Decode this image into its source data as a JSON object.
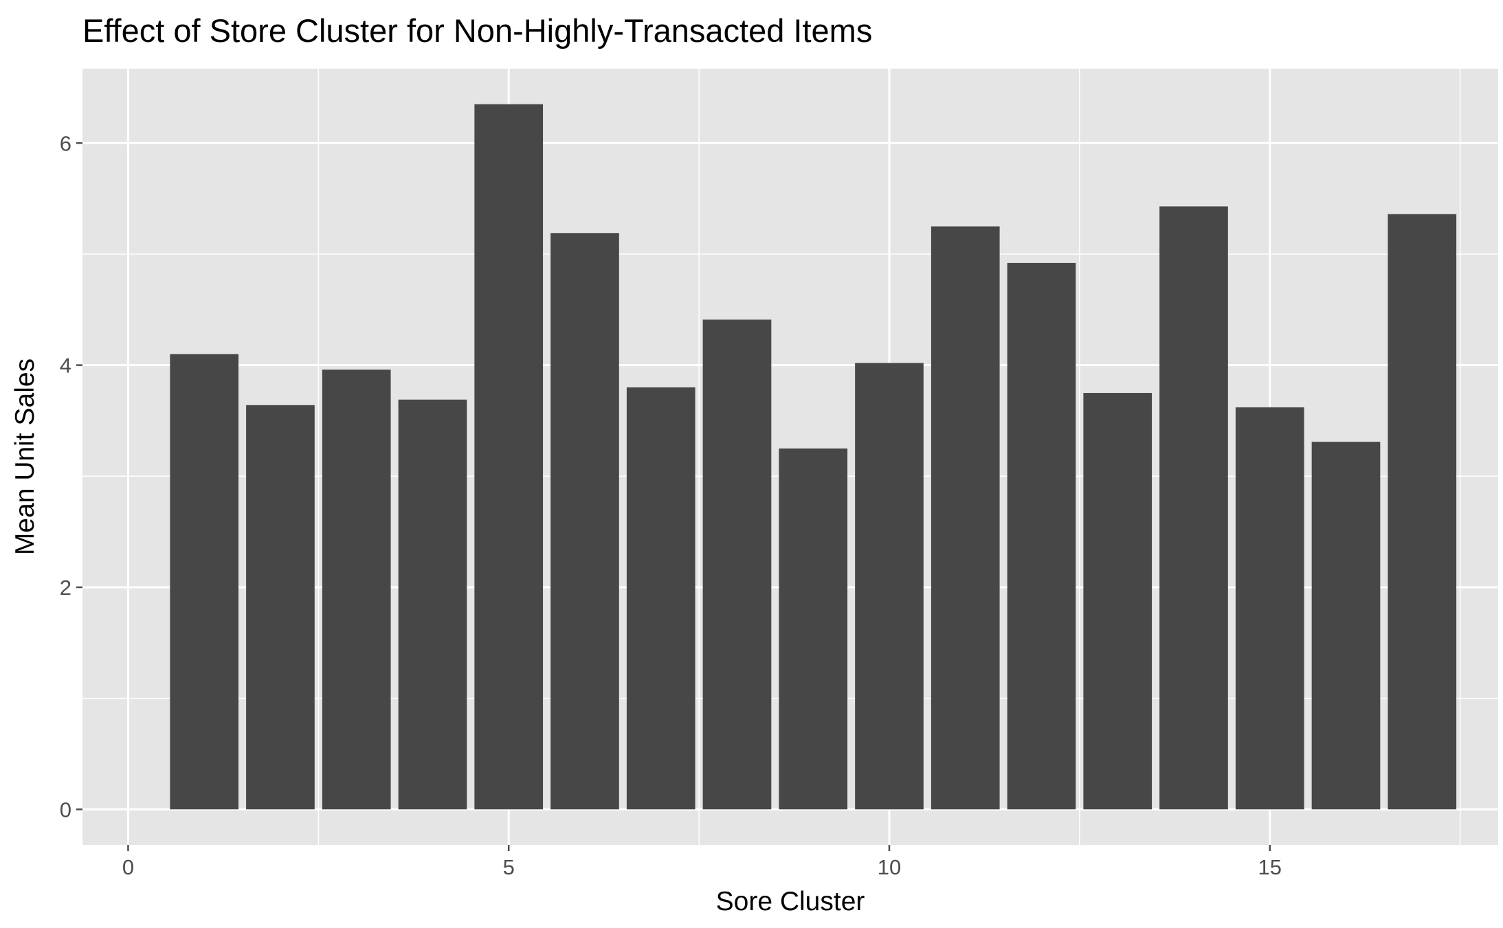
{
  "chart_data": {
    "type": "bar",
    "title": "Effect of Store Cluster for Non-Highly-Transacted Items",
    "xlabel": "Sore Cluster",
    "ylabel": "Mean Unit Sales",
    "x": [
      1,
      2,
      3,
      4,
      5,
      6,
      7,
      8,
      9,
      10,
      11,
      12,
      13,
      14,
      15,
      16,
      17
    ],
    "values": [
      4.1,
      3.64,
      3.96,
      3.69,
      6.35,
      5.19,
      3.8,
      4.41,
      3.25,
      4.02,
      5.25,
      4.92,
      3.75,
      5.43,
      3.62,
      3.31,
      5.36
    ],
    "xlim": [
      -0.6,
      18.0
    ],
    "ylim": [
      -0.32,
      6.67
    ],
    "xticks": [
      0,
      5,
      10,
      15
    ],
    "xtick_labels": [
      "0",
      "5",
      "10",
      "15"
    ],
    "yticks": [
      0,
      2,
      4,
      6
    ],
    "ytick_labels": [
      "0",
      "2",
      "4",
      "6"
    ],
    "grid": true,
    "colors": {
      "bar": "#474747",
      "panel": "#e5e5e5",
      "grid": "#ffffff",
      "tick": "#4d4d4d"
    }
  }
}
